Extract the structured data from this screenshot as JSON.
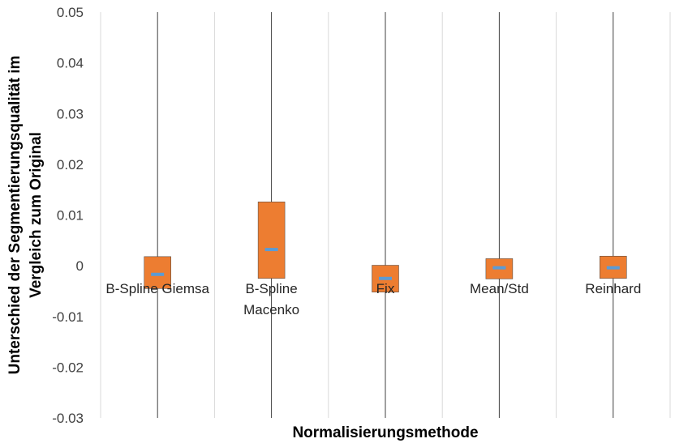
{
  "chart_data": {
    "type": "box",
    "xlabel": "Normalisierungsmethode",
    "ylabel": [
      "Unterschied der Segmentierungsqualität im",
      "Vergleich zum Original"
    ],
    "ylim": [
      -0.03,
      0.05
    ],
    "yticks": [
      {
        "value": 0.05,
        "label": "0.05"
      },
      {
        "value": 0.04,
        "label": "0.04"
      },
      {
        "value": 0.03,
        "label": "0.03"
      },
      {
        "value": 0.02,
        "label": "0.02"
      },
      {
        "value": 0.01,
        "label": "0.01"
      },
      {
        "value": 0.0,
        "label": "0"
      },
      {
        "value": -0.01,
        "label": "-0.01"
      },
      {
        "value": -0.02,
        "label": "-0.02"
      },
      {
        "value": -0.03,
        "label": "-0.03"
      }
    ],
    "categories": [
      {
        "lines": [
          "B-Spline Giemsa"
        ],
        "q1": -0.0045,
        "q3": 0.0018,
        "median": -0.0017
      },
      {
        "lines": [
          "B-Spline",
          "Macenko"
        ],
        "q1": -0.0025,
        "q3": 0.0126,
        "median": 0.0032
      },
      {
        "lines": [
          "Fix"
        ],
        "q1": -0.0052,
        "q3": 0.0001,
        "median": -0.0025
      },
      {
        "lines": [
          "Mean/Std"
        ],
        "q1": -0.0026,
        "q3": 0.0014,
        "median": -0.0004
      },
      {
        "lines": [
          "Reinhard"
        ],
        "q1": -0.0025,
        "q3": 0.0019,
        "median": -0.0004
      }
    ],
    "colors": {
      "box": "#ED7D31",
      "median": "#5B9BD5",
      "grid": "#D9D9D9",
      "whisker": "#404040"
    },
    "grid": true,
    "legend": "none"
  }
}
